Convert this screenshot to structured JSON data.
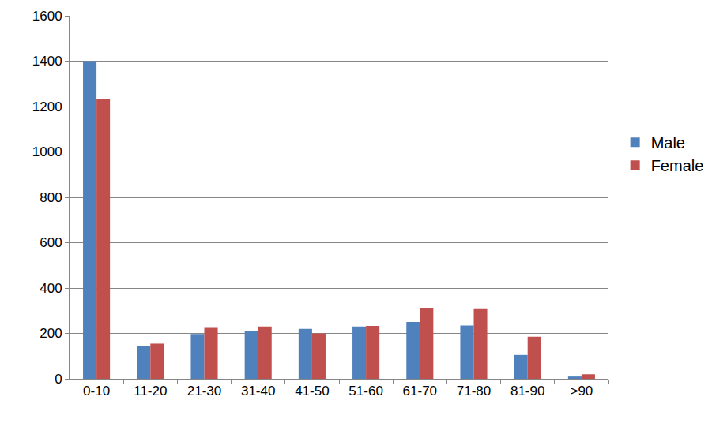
{
  "chart_data": {
    "type": "bar",
    "categories": [
      "0-10",
      "11-20",
      "21-30",
      "31-40",
      "41-50",
      "51-60",
      "61-70",
      "71-80",
      "81-90",
      ">90"
    ],
    "series": [
      {
        "name": "Male",
        "color": "#4F81BD",
        "values": [
          1400,
          145,
          197,
          210,
          220,
          230,
          250,
          235,
          105,
          10
        ]
      },
      {
        "name": "Female",
        "color": "#C0504D",
        "values": [
          1232,
          155,
          228,
          230,
          200,
          233,
          313,
          310,
          185,
          20
        ]
      }
    ],
    "ylim": [
      0,
      1600
    ],
    "yticks": [
      0,
      200,
      400,
      600,
      800,
      1000,
      1200,
      1400,
      1600
    ],
    "grid": true,
    "legend": "right"
  }
}
